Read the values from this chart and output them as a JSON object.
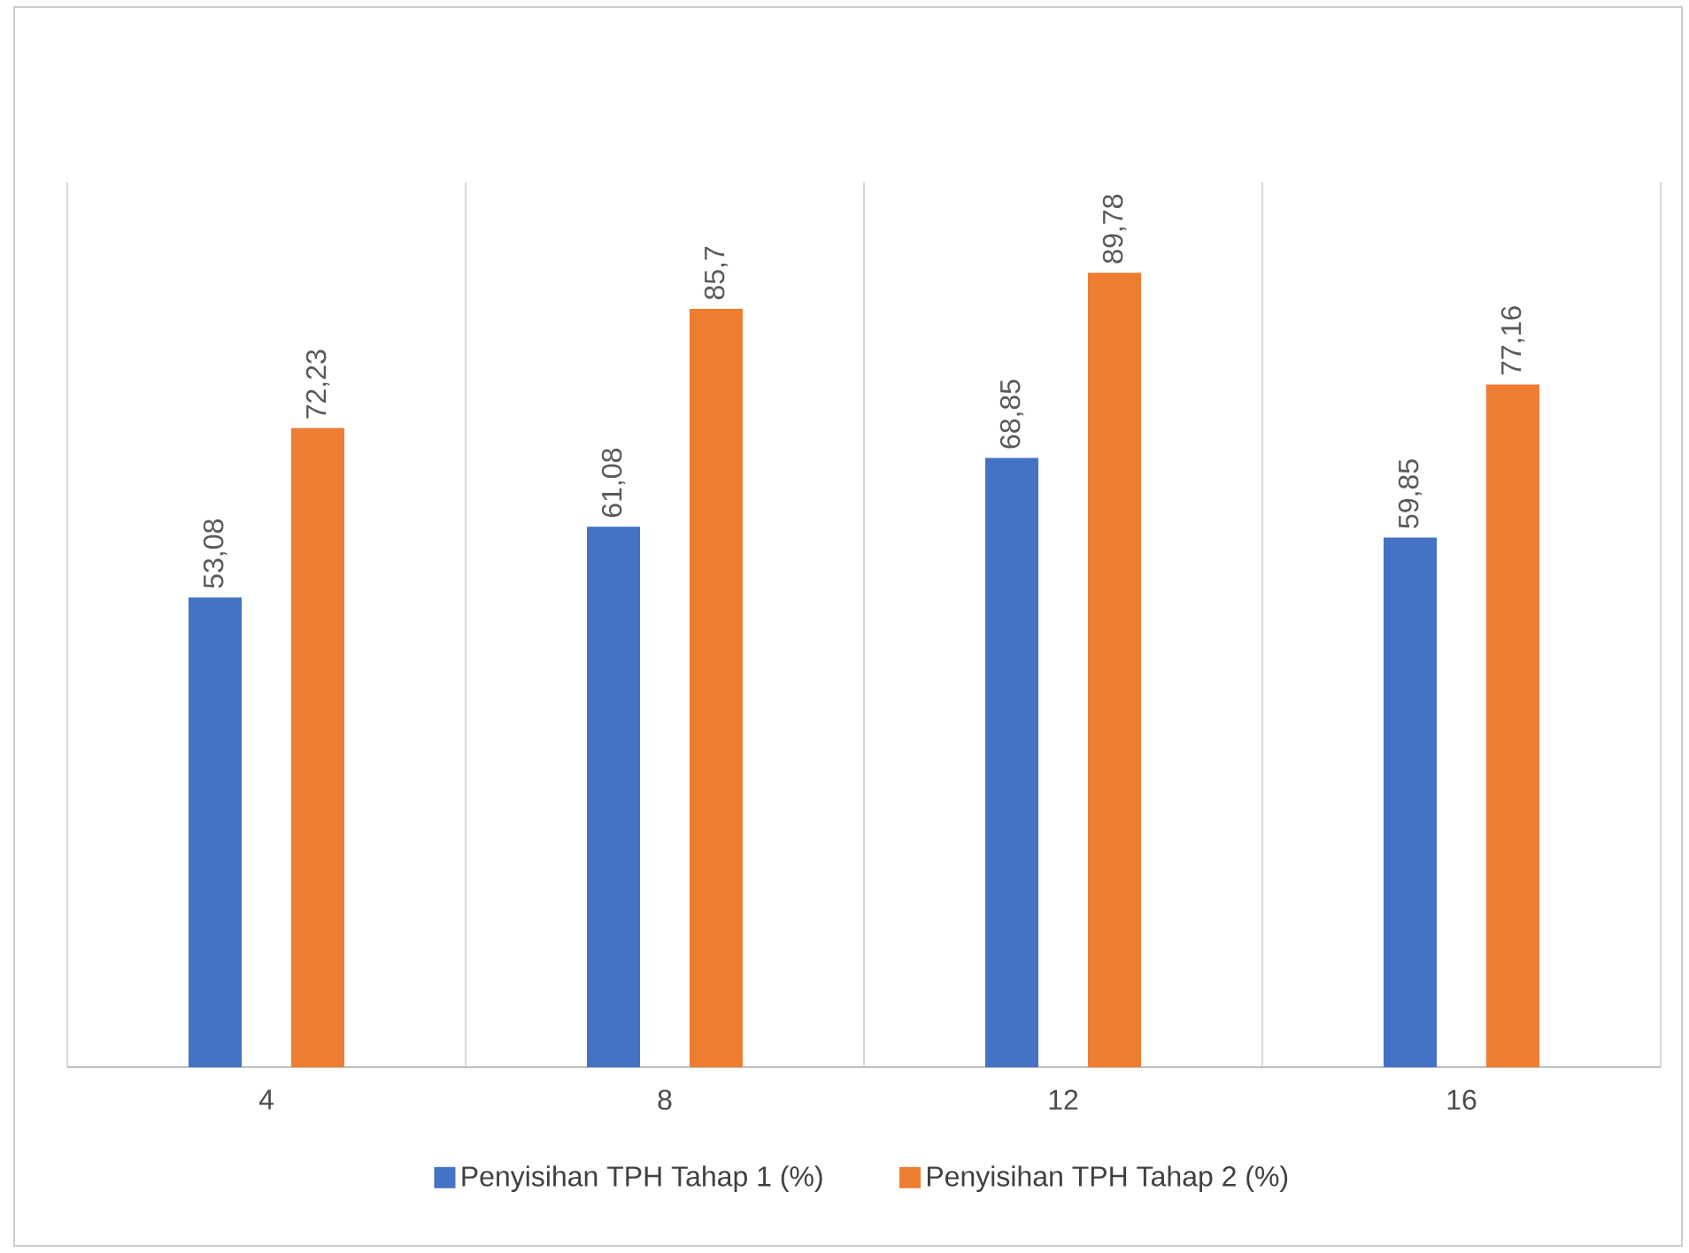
{
  "chart_data": {
    "type": "bar",
    "categories": [
      "4",
      "8",
      "12",
      "16"
    ],
    "series": [
      {
        "name": "Penyisihan TPH Tahap 1 (%)",
        "color": "#4472c4",
        "values": [
          53.08,
          61.08,
          68.85,
          59.85
        ],
        "value_labels": [
          "53,08",
          "61,08",
          "68,85",
          "59,85"
        ]
      },
      {
        "name": "Penyisihan TPH Tahap 2 (%)",
        "color": "#ed7d31",
        "values": [
          72.23,
          85.7,
          89.78,
          77.16
        ],
        "value_labels": [
          "72,23",
          "85,7",
          "89,78",
          "77,16"
        ]
      }
    ],
    "relative": false,
    "ylim": [
      0,
      100
    ],
    "grid": "x",
    "legend": "bottom"
  }
}
